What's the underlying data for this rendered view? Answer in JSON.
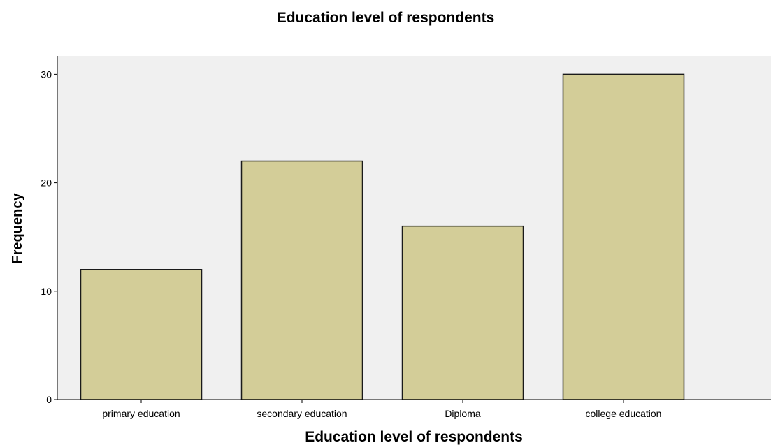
{
  "chart_data": {
    "type": "bar",
    "title": "Education level of respondents",
    "xlabel": "Education level of respondents",
    "ylabel": "Frequency",
    "categories": [
      "primary education",
      "secondary education",
      "Diploma",
      "college education"
    ],
    "values": [
      12,
      22,
      16,
      30
    ],
    "ylim": [
      0,
      31.7
    ],
    "yticks": [
      0,
      10,
      20,
      30
    ],
    "grid": false,
    "legend": "none",
    "colors": {
      "bar_fill": "#d3cd98",
      "bar_stroke": "#1a1a1a",
      "plot_background": "#f0f0f0",
      "axis": "#000000"
    }
  }
}
